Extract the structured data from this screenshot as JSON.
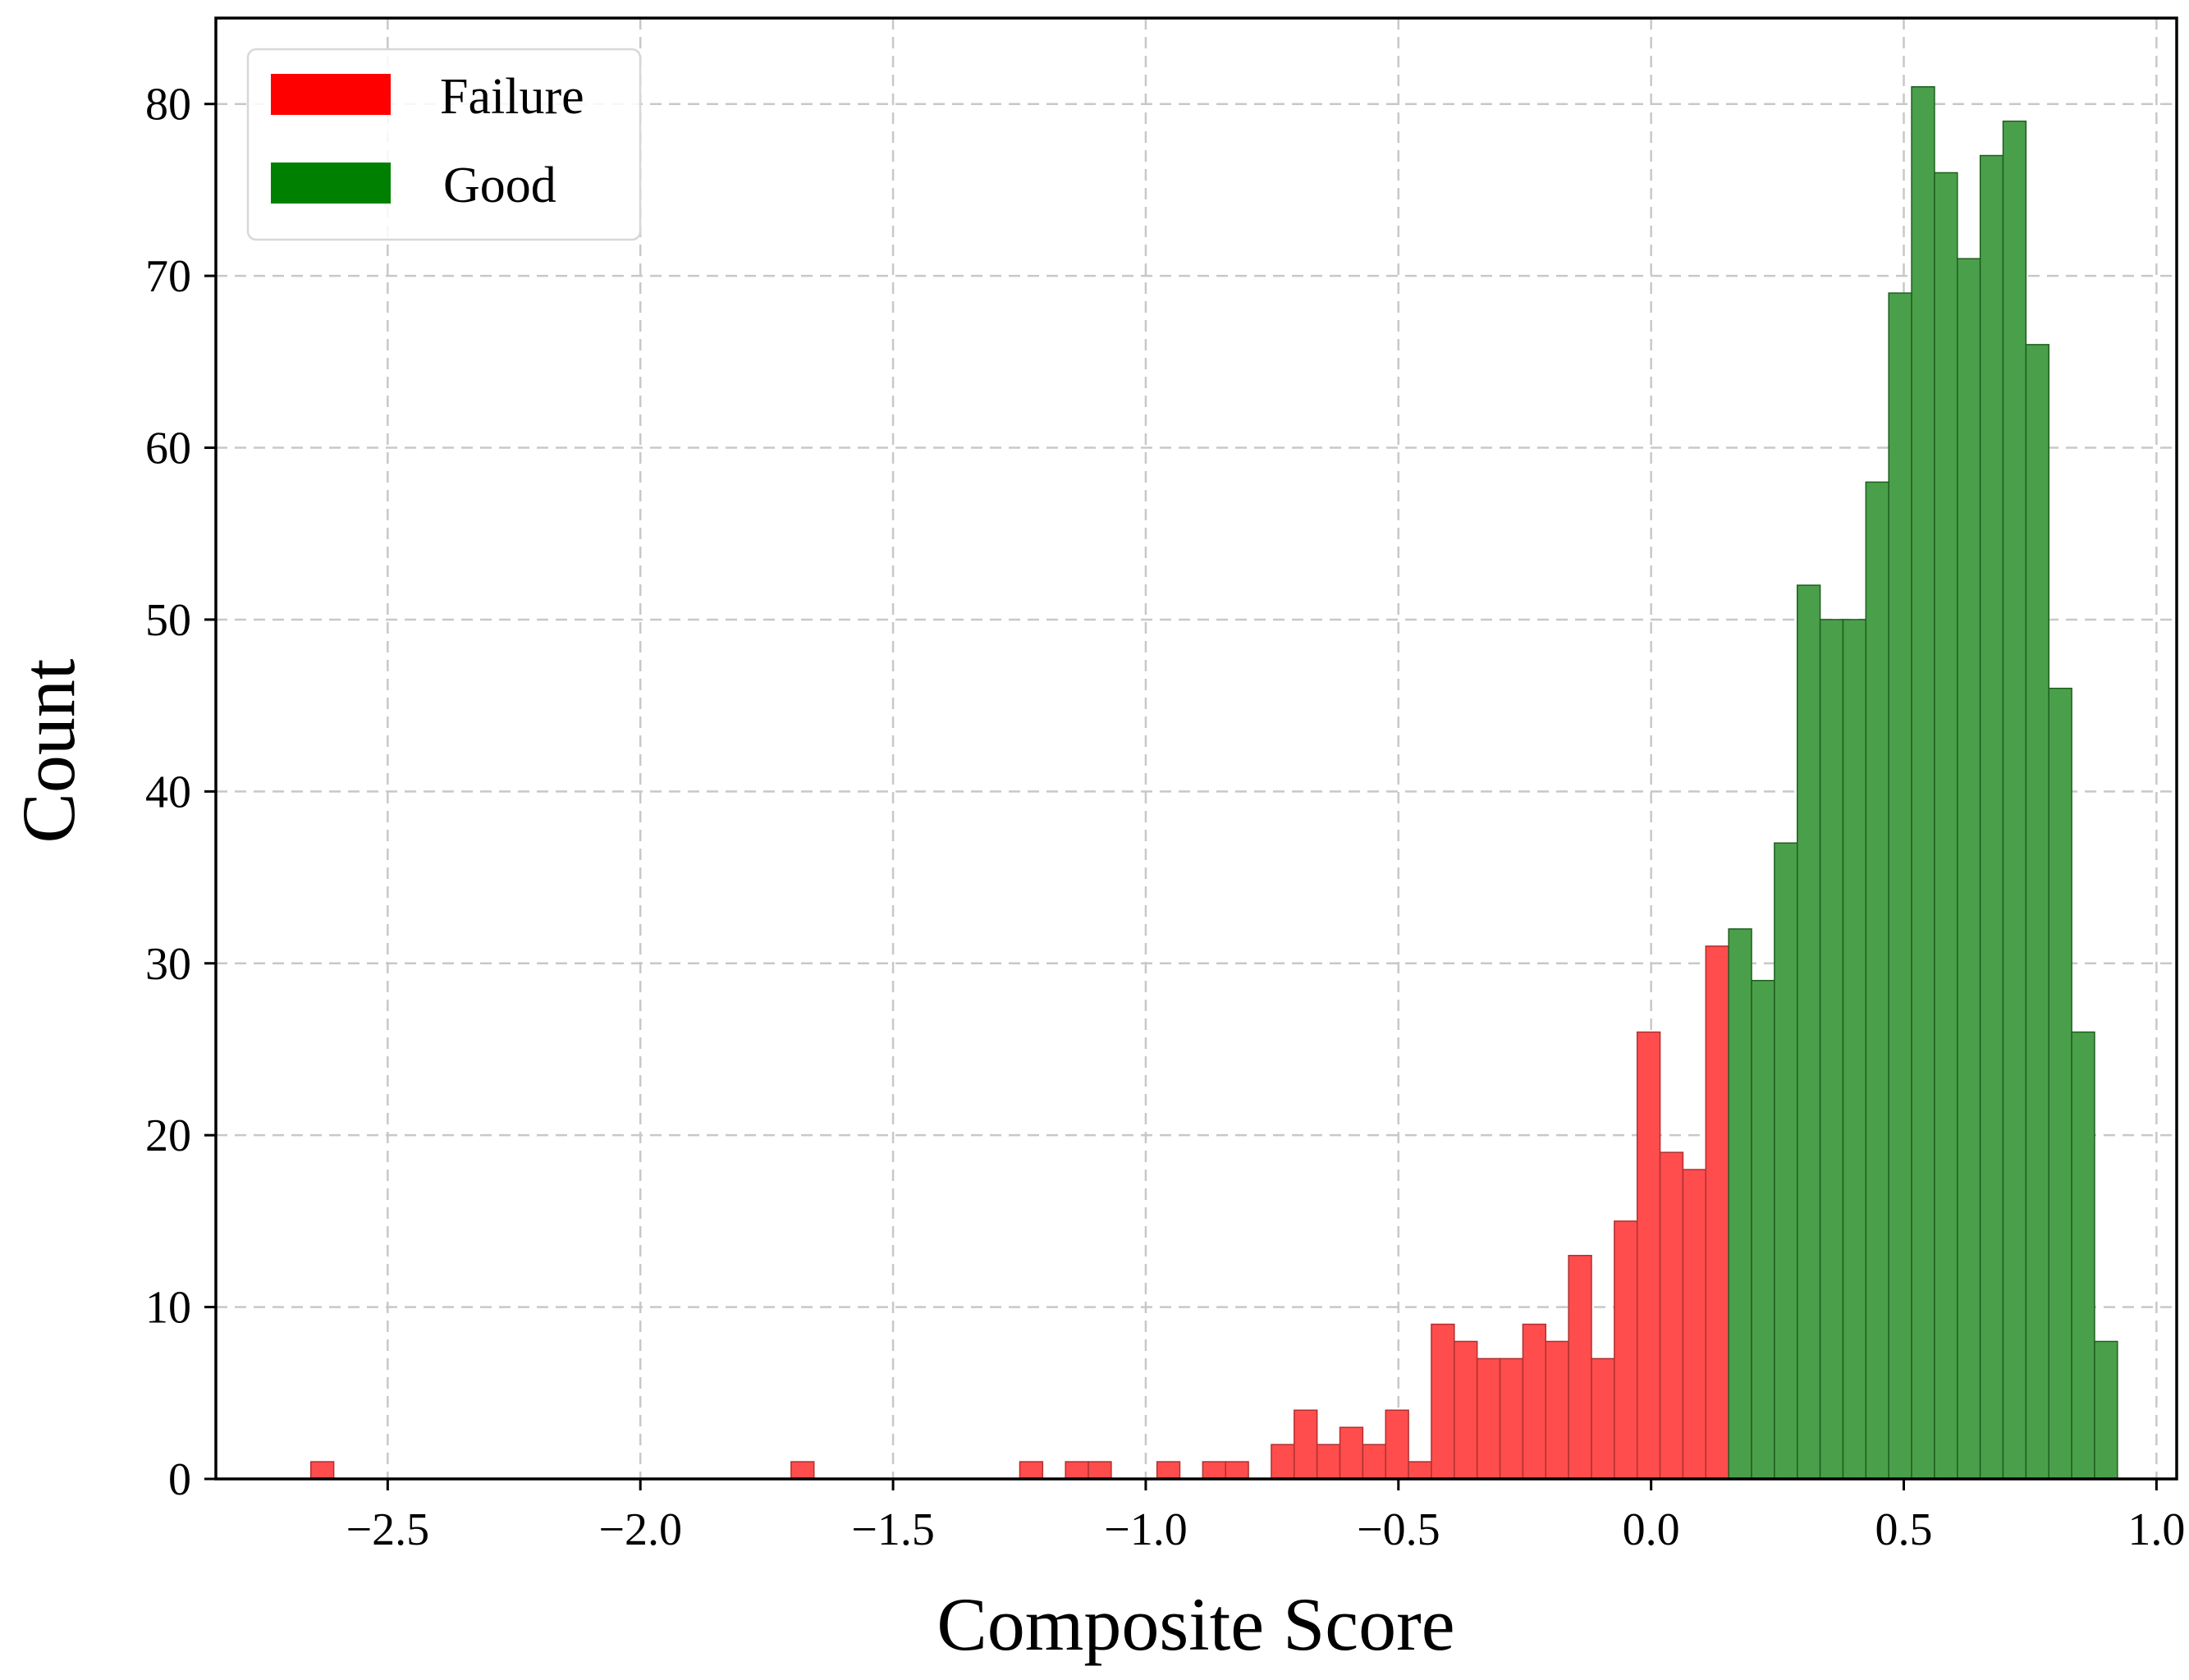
{
  "chart_data": {
    "type": "bar",
    "xlabel": "Composite Score",
    "ylabel": "Count",
    "xlim": [
      -2.84,
      1.04
    ],
    "ylim": [
      0,
      85
    ],
    "grid": true,
    "legend_position": "top-left",
    "x_ticks": [
      -2.5,
      -2.0,
      -1.5,
      -1.0,
      -0.5,
      0.0,
      0.5,
      1.0
    ],
    "x_tick_labels": [
      "−2.5",
      "−2.0",
      "−1.5",
      "−1.0",
      "−0.5",
      "0.0",
      "0.5",
      "1.0"
    ],
    "y_ticks": [
      0,
      10,
      20,
      30,
      40,
      50,
      60,
      70,
      80
    ],
    "y_tick_labels": [
      "0",
      "10",
      "20",
      "30",
      "40",
      "50",
      "60",
      "70",
      "80"
    ],
    "bin_start": -2.652,
    "bin_width": 0.04525,
    "series": [
      {
        "name": "Failure",
        "color": "#ff0000",
        "fill": "#ff4d4d",
        "edge": "#b03030",
        "counts": [
          1,
          0,
          0,
          0,
          0,
          0,
          0,
          0,
          0,
          0,
          0,
          0,
          0,
          0,
          0,
          0,
          0,
          0,
          0,
          0,
          0,
          1,
          0,
          0,
          0,
          0,
          0,
          0,
          0,
          0,
          0,
          1,
          0,
          1,
          1,
          0,
          0,
          1,
          0,
          1,
          1,
          0,
          2,
          4,
          2,
          3,
          2,
          4,
          1,
          9,
          8,
          7,
          7,
          9,
          8,
          13,
          7,
          15,
          26,
          19,
          18,
          31
        ]
      },
      {
        "name": "Good",
        "color": "#008000",
        "fill": "#4aa04a",
        "edge": "#1e5e1e",
        "start_index": 62,
        "counts": [
          32,
          29,
          37,
          52,
          50,
          50,
          58,
          69,
          81,
          76,
          71,
          77,
          79,
          66,
          46,
          26,
          8
        ]
      }
    ]
  }
}
